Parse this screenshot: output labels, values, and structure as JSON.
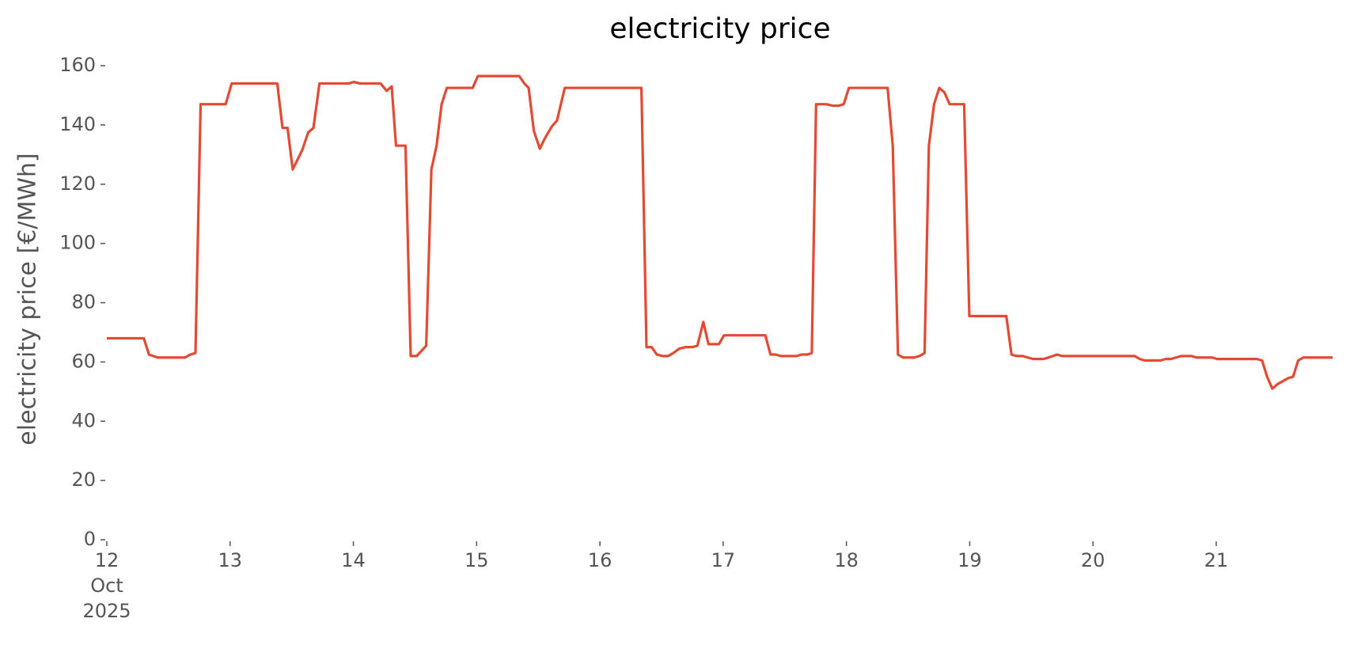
{
  "chart_data": {
    "type": "line",
    "title": "electricity price",
    "ylabel": "electricity price [€/MWh]",
    "x": [
      12.0,
      12.3,
      12.342,
      12.412,
      12.635,
      12.677,
      12.719,
      12.761,
      12.964,
      13.013,
      13.383,
      13.425,
      13.466,
      13.508,
      13.585,
      13.634,
      13.676,
      13.725,
      13.962,
      14.004,
      14.053,
      14.221,
      14.27,
      14.311,
      14.346,
      14.423,
      14.465,
      14.514,
      14.591,
      14.633,
      14.675,
      14.716,
      14.758,
      14.968,
      15.01,
      15.345,
      15.387,
      15.422,
      15.464,
      15.513,
      15.554,
      15.61,
      15.652,
      15.715,
      16.337,
      16.378,
      16.42,
      16.462,
      16.511,
      16.553,
      16.595,
      16.644,
      16.693,
      16.749,
      16.791,
      16.839,
      16.881,
      16.965,
      17.007,
      17.342,
      17.384,
      17.426,
      17.468,
      17.594,
      17.635,
      17.684,
      17.719,
      17.754,
      17.838,
      17.887,
      17.936,
      17.978,
      18.02,
      18.334,
      18.376,
      18.418,
      18.459,
      18.55,
      18.592,
      18.634,
      18.669,
      18.711,
      18.753,
      18.795,
      18.837,
      18.955,
      18.997,
      19.297,
      19.339,
      19.381,
      19.43,
      19.472,
      19.514,
      19.598,
      19.64,
      19.709,
      19.751,
      20.338,
      20.38,
      20.422,
      20.547,
      20.589,
      20.631,
      20.673,
      20.715,
      20.799,
      20.841,
      20.925,
      20.966,
      21.008,
      21.33,
      21.372,
      21.413,
      21.455,
      21.497,
      21.581,
      21.623,
      21.665,
      21.707,
      21.944
    ],
    "series": [
      {
        "name": "electricity price",
        "color": "#e24a33",
        "values": [
          68,
          68,
          62.5,
          61.5,
          61.5,
          62.5,
          63,
          147,
          147,
          154,
          154,
          139,
          139,
          125,
          131.5,
          137.5,
          139,
          154,
          154,
          154.5,
          154,
          154,
          151.5,
          153,
          133,
          133,
          62,
          62,
          65.5,
          125,
          133,
          147,
          152.5,
          152.5,
          156.5,
          156.5,
          154,
          152.5,
          138,
          132,
          135.5,
          139.5,
          141.5,
          152.5,
          152.5,
          65,
          65,
          62.5,
          62,
          62,
          63,
          64.5,
          65,
          65,
          65.5,
          73.5,
          66,
          66,
          69,
          69,
          62.5,
          62.5,
          62,
          62,
          62.5,
          62.5,
          63,
          147,
          147,
          146.5,
          146.5,
          147,
          152.5,
          152.5,
          133,
          62.5,
          61.5,
          61.5,
          62,
          63,
          133,
          147,
          152.5,
          151,
          147,
          147,
          75.5,
          75.5,
          62.5,
          62,
          62,
          61.5,
          61,
          61,
          61.5,
          62.5,
          62,
          62,
          61,
          60.5,
          60.5,
          61,
          61,
          61.5,
          62,
          62,
          61.5,
          61.5,
          61.5,
          61,
          61,
          60.5,
          55,
          51,
          52.5,
          54.5,
          55,
          60.5,
          61.5,
          61.5
        ]
      }
    ],
    "xlim": [
      12,
      21.944
    ],
    "xticks": [
      {
        "value": 12,
        "label": "12\nOct\n2025"
      },
      13,
      14,
      15,
      16,
      17,
      18,
      19,
      20,
      21
    ],
    "ylim": [
      0,
      160
    ],
    "yticks": [
      0,
      20,
      40,
      60,
      80,
      100,
      120,
      140,
      160
    ],
    "grid": false
  }
}
